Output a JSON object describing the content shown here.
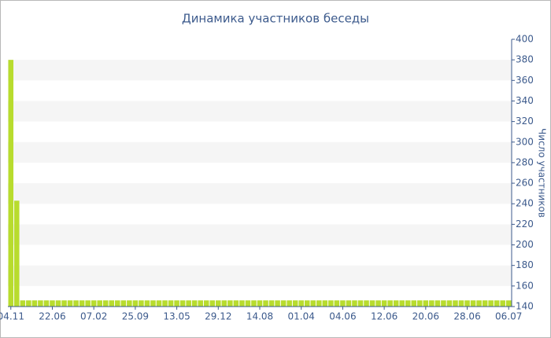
{
  "chart_data": {
    "type": "bar",
    "title": "Динамика участников беседы",
    "y_label": "Число участников",
    "categories": [
      "04.11",
      null,
      null,
      null,
      null,
      null,
      null,
      "22.06",
      null,
      null,
      null,
      null,
      null,
      null,
      "07.02",
      null,
      null,
      null,
      null,
      null,
      null,
      "25.09",
      null,
      null,
      null,
      null,
      null,
      null,
      "13.05",
      null,
      null,
      null,
      null,
      null,
      null,
      "29.12",
      null,
      null,
      null,
      null,
      null,
      null,
      "14.08",
      null,
      null,
      null,
      null,
      null,
      null,
      "01.04",
      null,
      null,
      null,
      null,
      null,
      null,
      "04.06",
      null,
      null,
      null,
      null,
      null,
      null,
      "12.06",
      null,
      null,
      null,
      null,
      null,
      null,
      "20.06",
      null,
      null,
      null,
      null,
      null,
      null,
      "28.06",
      null,
      null,
      null,
      null,
      null,
      null,
      "06.07"
    ],
    "values": [
      380,
      243,
      146,
      146,
      146,
      146,
      146,
      146,
      146,
      146,
      146,
      146,
      146,
      146,
      146,
      146,
      146,
      146,
      146,
      146,
      146,
      146,
      146,
      146,
      146,
      146,
      146,
      146,
      146,
      146,
      146,
      146,
      146,
      146,
      146,
      146,
      146,
      146,
      146,
      146,
      146,
      146,
      146,
      146,
      146,
      146,
      146,
      146,
      146,
      146,
      146,
      146,
      146,
      146,
      146,
      146,
      146,
      146,
      146,
      146,
      146,
      146,
      146,
      146,
      146,
      146,
      146,
      146,
      146,
      146,
      146,
      146,
      146,
      146,
      146,
      146,
      146,
      146,
      146,
      146,
      146,
      146,
      146,
      146,
      146
    ],
    "color": "#b8dc2e",
    "ylim": [
      140,
      400
    ],
    "yticks": [
      140,
      160,
      180,
      200,
      220,
      240,
      260,
      280,
      300,
      320,
      340,
      360,
      380,
      400
    ],
    "grid": "striped",
    "y_axis_side": "right"
  }
}
